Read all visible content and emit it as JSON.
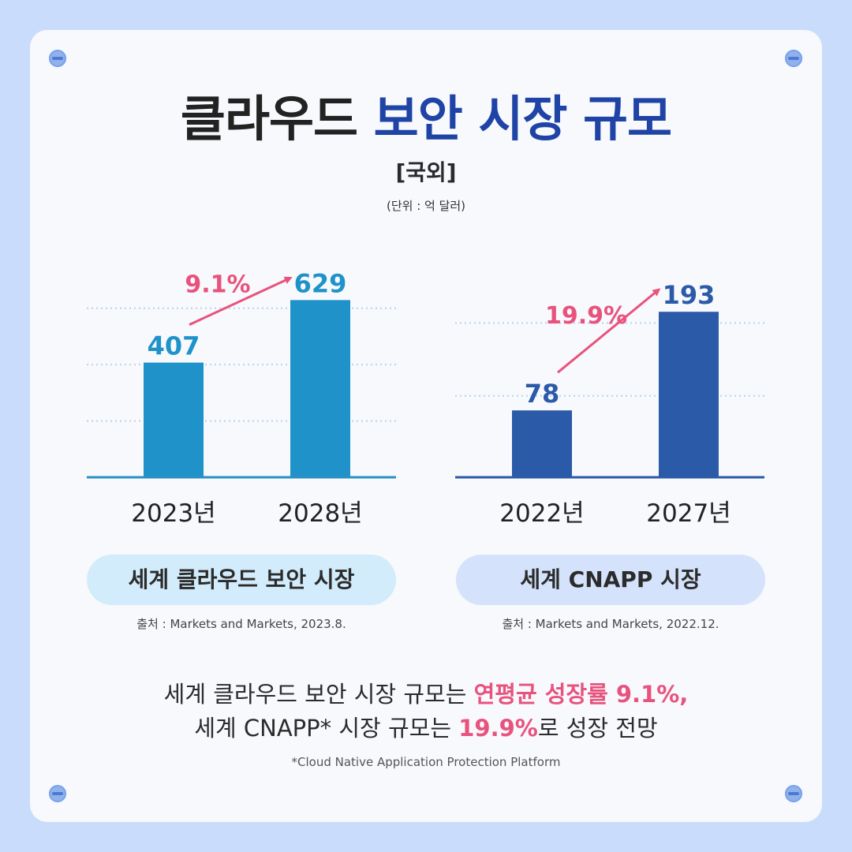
{
  "title": {
    "part1": "클라우드",
    "part2": "보안 시장 규모"
  },
  "subtitle": "[국외]",
  "unit": "(단위 : 억 달러)",
  "chart_data": [
    {
      "type": "bar",
      "categories": [
        "2023년",
        "2028년"
      ],
      "values": [
        407,
        629
      ],
      "growth_label": "9.1%",
      "title": "세계 클라우드 보안 시장",
      "source": "출처 : Markets and Markets, 2023.8.",
      "ylim": [
        0,
        700
      ],
      "gridlines": [
        200,
        400,
        600
      ],
      "bar_color": "#1f93c9",
      "label_color": "#1f93c9",
      "axis_color": "#2a8fc4",
      "pill_color": "#d2ecfb"
    },
    {
      "type": "bar",
      "categories": [
        "2022년",
        "2027년"
      ],
      "values": [
        78,
        193
      ],
      "growth_label": "19.9%",
      "title": "세계 CNAPP 시장",
      "source": "출처 : Markets and Markets, 2022.12.",
      "ylim": [
        0,
        230
      ],
      "gridlines": [
        95,
        180
      ],
      "bar_color": "#2b5aa8",
      "label_color": "#2b5aa8",
      "axis_color": "#2b5aa8",
      "pill_color": "#d4e3fb"
    }
  ],
  "summary": {
    "line1_pre": "세계 클라우드 보안 시장 규모는 ",
    "line1_hl": "연평균 성장률 9.1%,",
    "line2_pre": "세계 CNAPP* 시장 규모는 ",
    "line2_hl": "19.9%",
    "line2_post": "로 성장 전망"
  },
  "footnote": "*Cloud Native Application Protection Platform",
  "colors": {
    "accent_pink": "#e8537d",
    "title_blue": "#1f44a6"
  }
}
